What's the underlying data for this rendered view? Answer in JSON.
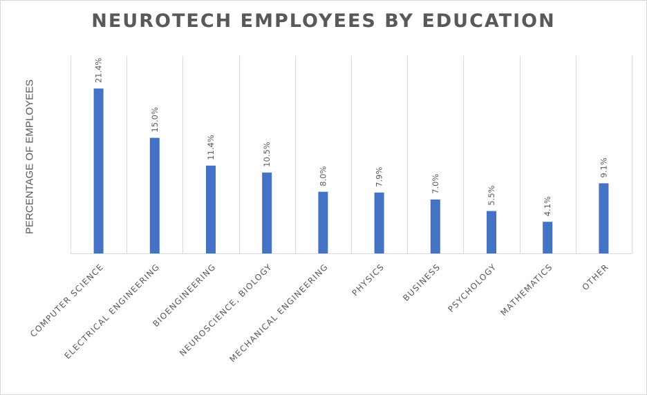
{
  "chart_data": {
    "type": "bar",
    "title": "NEUROTECH EMPLOYEES BY EDUCATION",
    "xlabel": "",
    "ylabel": "PERCENTAGE OF EMPLOYEES",
    "categories": [
      "COMPUTER SCIENCE",
      "ELECTRICAL ENGINEERING",
      "BIOENGINEERING",
      "NEUROSCIENCE, BIOLOGY",
      "MECHANICAL ENGINEERING",
      "PHYSICS",
      "BUSINESS",
      "PSYCHOLOGY",
      "MATHEMATICS",
      "OTHER"
    ],
    "values": [
      21.4,
      15.0,
      11.4,
      10.5,
      8.0,
      7.9,
      7.0,
      5.5,
      4.1,
      9.1
    ],
    "data_labels": [
      "21.4%",
      "15.0%",
      "11.4%",
      "10.5%",
      "8.0%",
      "7.9%",
      "7.0%",
      "5.5%",
      "4.1%",
      "9.1%"
    ],
    "ylim": [
      0,
      25
    ],
    "grid": "vertical",
    "legend": "none",
    "bar_color": "#4472c4",
    "text_color": "#595959",
    "grid_color": "#d9d9d9"
  }
}
